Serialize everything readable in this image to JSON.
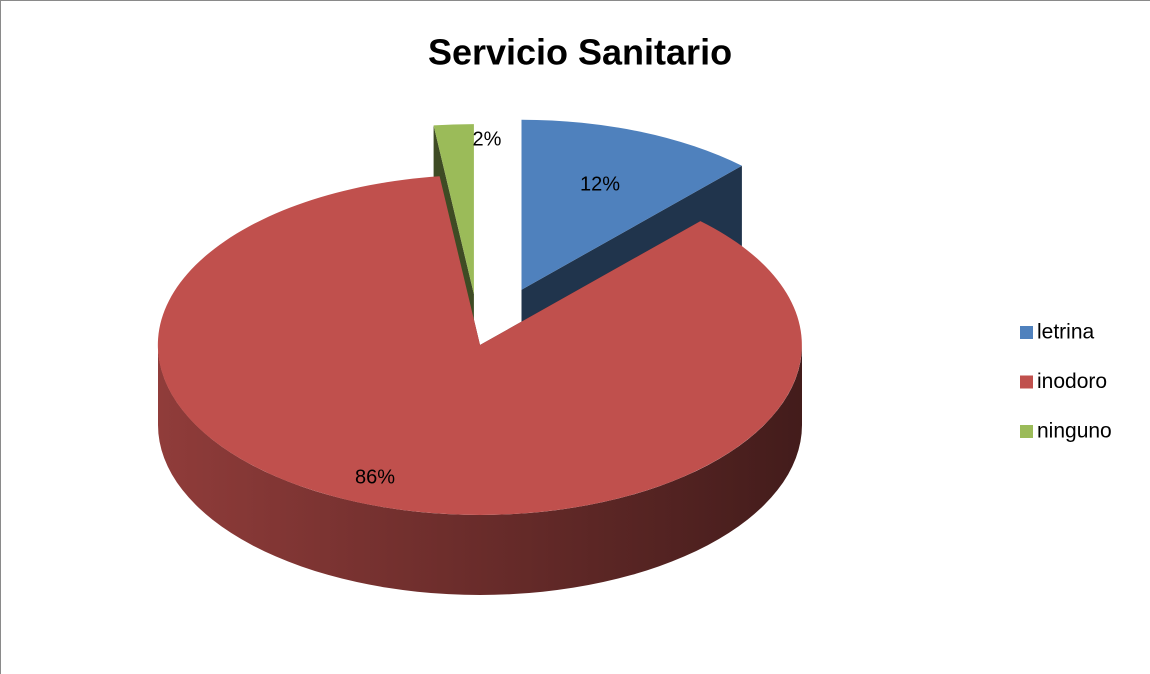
{
  "chart_data": {
    "type": "pie",
    "title": "Servicio Sanitario",
    "categories": [
      "letrina",
      "inodoro",
      "ninguno"
    ],
    "values": [
      12,
      86,
      2
    ],
    "value_labels": [
      "12%",
      "86%",
      "2%"
    ],
    "colors": [
      "#4f81bd",
      "#c0504d",
      "#9bbb59"
    ],
    "legend": "right"
  }
}
